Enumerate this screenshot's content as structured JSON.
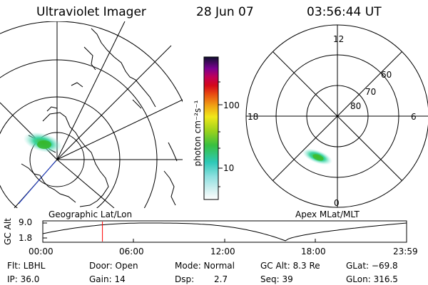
{
  "header": {
    "title": "Ultraviolet Imager",
    "date": "28 Jun 07",
    "time": "03:56:44 UT"
  },
  "colorbar": {
    "unit_label": "photon cm⁻²s⁻¹",
    "ticks": [
      "100",
      "10"
    ]
  },
  "geo_map": {
    "label": "Geographic Lat/Lon"
  },
  "polar_map": {
    "label": "Apex MLat/MLT",
    "mlt_labels": {
      "top": "12",
      "left": "18",
      "right": "6",
      "bottom": "0"
    },
    "lat_labels": [
      "60",
      "70",
      "80"
    ]
  },
  "altitude_plot": {
    "ylabel": "GC Alt",
    "yticks": [
      "9.0",
      "1.8"
    ],
    "xticks": [
      "00:00",
      "06:00",
      "12:00",
      "18:00",
      "23:59"
    ],
    "current_time_fraction": 0.164,
    "trough_time_fraction": 0.667
  },
  "info": {
    "flt": "Flt: LBHL",
    "ip": "IP: 36.0",
    "door": "Door: Open",
    "gain": "Gain: 14",
    "mode": "Mode: Normal",
    "dsp_label": "Dsp:",
    "dsp_value": "2.7",
    "gc_alt": "GC Alt: 8.3 Re",
    "seq": "Seq: 39",
    "glat": "GLat: −69.8",
    "glon": "GLon: 316.5"
  },
  "colors": {
    "frame": "#000000",
    "time_marker": "#ff0000",
    "track": "#1e3cc8"
  }
}
